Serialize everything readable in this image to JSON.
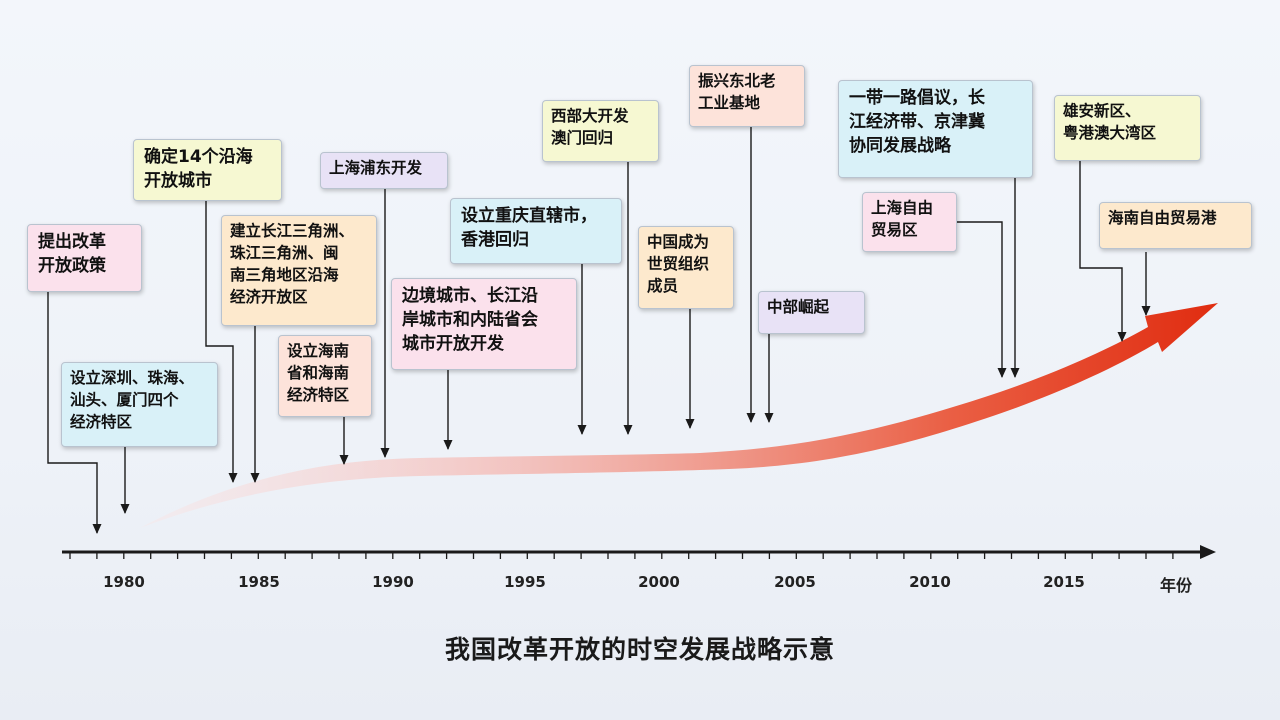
{
  "title": "我国改革开放的时空发展战略示意",
  "axis": {
    "unit": "年份",
    "ticks": [
      "1980",
      "1985",
      "1990",
      "1995",
      "2000",
      "2005",
      "2010",
      "2015"
    ]
  },
  "events": [
    {
      "id": "reform-policy",
      "text": "提出改革\n开放政策",
      "color": "pink"
    },
    {
      "id": "four-sez",
      "text": "设立深圳、珠海、\n汕头、厦门四个\n经济特区",
      "color": "blue"
    },
    {
      "id": "14-coastal",
      "text": "确定14个沿海\n开放城市",
      "color": "yellow"
    },
    {
      "id": "delta-zones",
      "text": "建立长江三角洲、\n珠江三角洲、闽\n南三角地区沿海\n经济开放区",
      "color": "orange"
    },
    {
      "id": "hainan-province",
      "text": "设立海南\n省和海南\n经济特区",
      "color": "peach"
    },
    {
      "id": "pudong",
      "text": "上海浦东开发",
      "color": "purple"
    },
    {
      "id": "border-cities",
      "text": "边境城市、长江沿\n岸城市和内陆省会\n城市开放开发",
      "color": "pink"
    },
    {
      "id": "chongqing-hk",
      "text": "设立重庆直辖市，\n香港回归",
      "color": "blue"
    },
    {
      "id": "west-macau",
      "text": "西部大开发\n澳门回归",
      "color": "yellow"
    },
    {
      "id": "wto",
      "text": "中国成为\n世贸组织\n成员",
      "color": "orange"
    },
    {
      "id": "northeast",
      "text": "振兴东北老\n工业基地",
      "color": "peach"
    },
    {
      "id": "central-rise",
      "text": "中部崛起",
      "color": "purple"
    },
    {
      "id": "belt-road",
      "text": "一带一路倡议，长\n江经济带、京津冀\n协同发展战略",
      "color": "blue"
    },
    {
      "id": "shanghai-ftz",
      "text": "上海自由\n贸易区",
      "color": "pink"
    },
    {
      "id": "xiongan-gba",
      "text": "雄安新区、\n粤港澳大湾区",
      "color": "yellow"
    },
    {
      "id": "hainan-ftp",
      "text": "海南自由贸易港",
      "color": "orange"
    }
  ],
  "colors": {
    "pink": "#fbe1ec",
    "blue": "#d9f1f8",
    "yellow": "#f6f8d2",
    "orange": "#fde9cd",
    "peach": "#fde3da",
    "purple": "#e8e2f6",
    "arrow_start": "#fbe3e3",
    "arrow_end": "#e02c10"
  }
}
